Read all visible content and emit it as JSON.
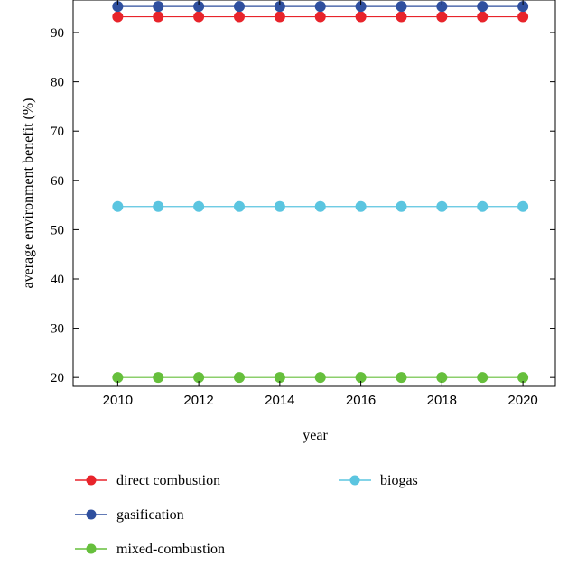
{
  "chart_data": {
    "type": "line",
    "title": "",
    "xlabel": "year",
    "ylabel": "average environment benefit (%)",
    "x": [
      2010,
      2011,
      2012,
      2013,
      2014,
      2015,
      2016,
      2017,
      2018,
      2019,
      2020
    ],
    "xlim": [
      2008.9,
      2020.8
    ],
    "ylim": [
      18.2,
      96.6
    ],
    "xticks": [
      2010,
      2012,
      2014,
      2016,
      2018,
      2020
    ],
    "yticks": [
      20,
      30,
      40,
      50,
      60,
      70,
      80,
      90
    ],
    "grid": false,
    "legend_position": "below",
    "series": [
      {
        "name": "direct combustion",
        "color": "#e8242b",
        "values": [
          93.2,
          93.2,
          93.2,
          93.2,
          93.2,
          93.2,
          93.2,
          93.2,
          93.2,
          93.2,
          93.2
        ]
      },
      {
        "name": "gasification",
        "color": "#2f4f9e",
        "values": [
          95.3,
          95.3,
          95.3,
          95.3,
          95.3,
          95.3,
          95.3,
          95.3,
          95.3,
          95.3,
          95.3
        ]
      },
      {
        "name": "mixed-combustion",
        "color": "#66bf3c",
        "values": [
          20.0,
          20.0,
          20.0,
          20.0,
          20.0,
          20.0,
          20.0,
          20.0,
          20.0,
          20.0,
          20.0
        ]
      },
      {
        "name": "biogas",
        "color": "#5bc5e0",
        "values": [
          54.7,
          54.7,
          54.7,
          54.7,
          54.7,
          54.7,
          54.7,
          54.7,
          54.7,
          54.7,
          54.7
        ]
      }
    ]
  }
}
